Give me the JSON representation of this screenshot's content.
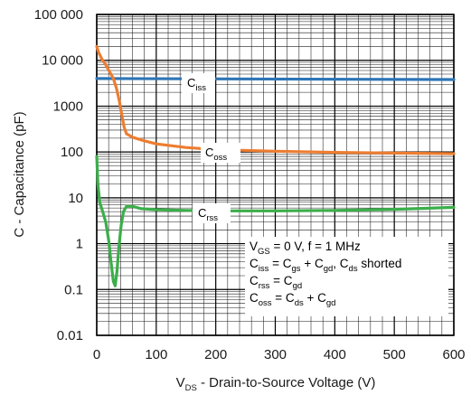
{
  "chart_data": {
    "type": "line",
    "title": "",
    "xlabel": {
      "main": "V",
      "sub": "DS",
      "rest": " - Drain-to-Source Voltage (V)"
    },
    "ylabel": "C - Capacitance (pF)",
    "xlim": [
      0,
      600
    ],
    "ylim": [
      0.01,
      100000
    ],
    "yscale": "log",
    "grid": true,
    "x_ticks": [
      "0",
      "100",
      "200",
      "300",
      "400",
      "500",
      "600"
    ],
    "y_ticks": [
      "0.01",
      "0.1",
      "1",
      "10",
      "100",
      "1000",
      "10 000",
      "100 000"
    ],
    "series": [
      {
        "name": {
          "main": "C",
          "sub": "iss"
        },
        "color": "#2E75B6",
        "points": [
          [
            0,
            4000
          ],
          [
            600,
            3800
          ]
        ]
      },
      {
        "name": {
          "main": "C",
          "sub": "oss"
        },
        "color": "#ED7D31",
        "points": [
          [
            0,
            20000
          ],
          [
            3,
            15000
          ],
          [
            8,
            11000
          ],
          [
            15,
            8000
          ],
          [
            22,
            5500
          ],
          [
            28,
            4000
          ],
          [
            33,
            2500
          ],
          [
            38,
            1300
          ],
          [
            42,
            650
          ],
          [
            46,
            350
          ],
          [
            50,
            250
          ],
          [
            60,
            210
          ],
          [
            80,
            175
          ],
          [
            100,
            150
          ],
          [
            150,
            125
          ],
          [
            200,
            113
          ],
          [
            300,
            104
          ],
          [
            400,
            98
          ],
          [
            500,
            95
          ],
          [
            600,
            92
          ]
        ]
      },
      {
        "name": {
          "main": "C",
          "sub": "rss"
        },
        "color": "#3BAE4A",
        "points": [
          [
            0,
            80
          ],
          [
            2,
            20
          ],
          [
            5,
            8
          ],
          [
            10,
            5
          ],
          [
            15,
            3
          ],
          [
            20,
            1.2
          ],
          [
            24,
            0.4
          ],
          [
            28,
            0.15
          ],
          [
            31,
            0.12
          ],
          [
            34,
            0.25
          ],
          [
            37,
            0.8
          ],
          [
            41,
            2.5
          ],
          [
            45,
            5
          ],
          [
            50,
            6.5
          ],
          [
            60,
            6.5
          ],
          [
            75,
            5.8
          ],
          [
            100,
            5.5
          ],
          [
            150,
            5.3
          ],
          [
            200,
            5.2
          ],
          [
            300,
            5.2
          ],
          [
            400,
            5.3
          ],
          [
            500,
            5.6
          ],
          [
            600,
            6.2
          ]
        ]
      }
    ],
    "annotation_lines": [
      [
        {
          "t": "V"
        },
        {
          "t": "GS",
          "sub": true
        },
        {
          "t": " = 0 V, f = 1 MHz"
        }
      ],
      [
        {
          "t": "C"
        },
        {
          "t": "iss",
          "sub": true
        },
        {
          "t": " = C"
        },
        {
          "t": "gs",
          "sub": true
        },
        {
          "t": " + C"
        },
        {
          "t": "gd",
          "sub": true
        },
        {
          "t": ", C"
        },
        {
          "t": "ds",
          "sub": true
        },
        {
          "t": " shorted"
        }
      ],
      [
        {
          "t": "C"
        },
        {
          "t": "rss",
          "sub": true
        },
        {
          "t": " = C"
        },
        {
          "t": "gd",
          "sub": true
        }
      ],
      [
        {
          "t": "C"
        },
        {
          "t": "oss",
          "sub": true
        },
        {
          "t": " = C"
        },
        {
          "t": "ds",
          "sub": true
        },
        {
          "t": " + C"
        },
        {
          "t": "gd",
          "sub": true
        }
      ]
    ]
  }
}
